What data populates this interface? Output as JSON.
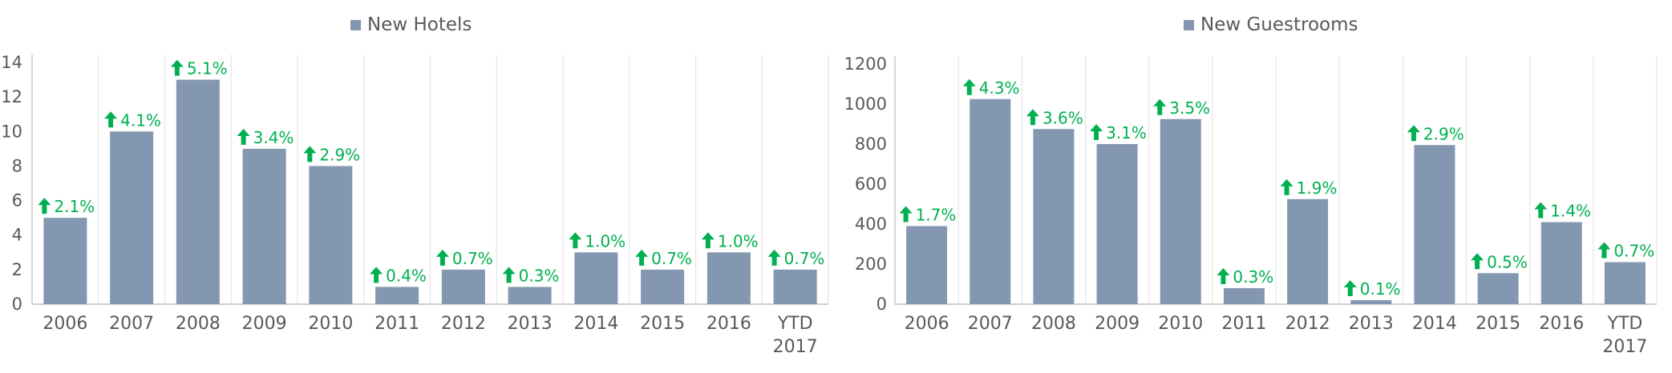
{
  "colors": {
    "bar": "#8497b0",
    "grid": "#e6e6e6",
    "axis": "#bfbfbf",
    "text": "#595959",
    "up": "#00b050"
  },
  "icons": {
    "change_marker": "arrow-up-icon"
  },
  "chart_data": [
    {
      "type": "bar",
      "legend": "New Hotels",
      "categories": [
        "2006",
        "2007",
        "2008",
        "2009",
        "2010",
        "2011",
        "2012",
        "2013",
        "2014",
        "2015",
        "2016",
        "YTD 2017"
      ],
      "series": [
        {
          "name": "New Hotels",
          "values": [
            5,
            10,
            13,
            9,
            8,
            1,
            2,
            1,
            3,
            2,
            3,
            2
          ],
          "labels": [
            "2.1%",
            "4.1%",
            "5.1%",
            "3.4%",
            "2.9%",
            "0.4%",
            "0.7%",
            "0.3%",
            "1.0%",
            "0.7%",
            "1.0%",
            "0.7%"
          ]
        }
      ],
      "ylim": [
        0,
        14
      ],
      "yticks": [
        0,
        2,
        4,
        6,
        8,
        10,
        12,
        14
      ],
      "grid": "vertical",
      "legend_position": "top-center"
    },
    {
      "type": "bar",
      "legend": "New Guestrooms",
      "categories": [
        "2006",
        "2007",
        "2008",
        "2009",
        "2010",
        "2011",
        "2012",
        "2013",
        "2014",
        "2015",
        "2016",
        "YTD 2017"
      ],
      "series": [
        {
          "name": "New Guestrooms",
          "values": [
            390,
            1025,
            875,
            800,
            925,
            80,
            525,
            20,
            795,
            155,
            410,
            210
          ],
          "labels": [
            "1.7%",
            "4.3%",
            "3.6%",
            "3.1%",
            "3.5%",
            "0.3%",
            "1.9%",
            "0.1%",
            "2.9%",
            "0.5%",
            "1.4%",
            "0.7%"
          ]
        }
      ],
      "ylim": [
        0,
        1200
      ],
      "yticks": [
        0,
        200,
        400,
        600,
        800,
        1000,
        1200
      ],
      "grid": "vertical",
      "legend_position": "top-center"
    }
  ]
}
